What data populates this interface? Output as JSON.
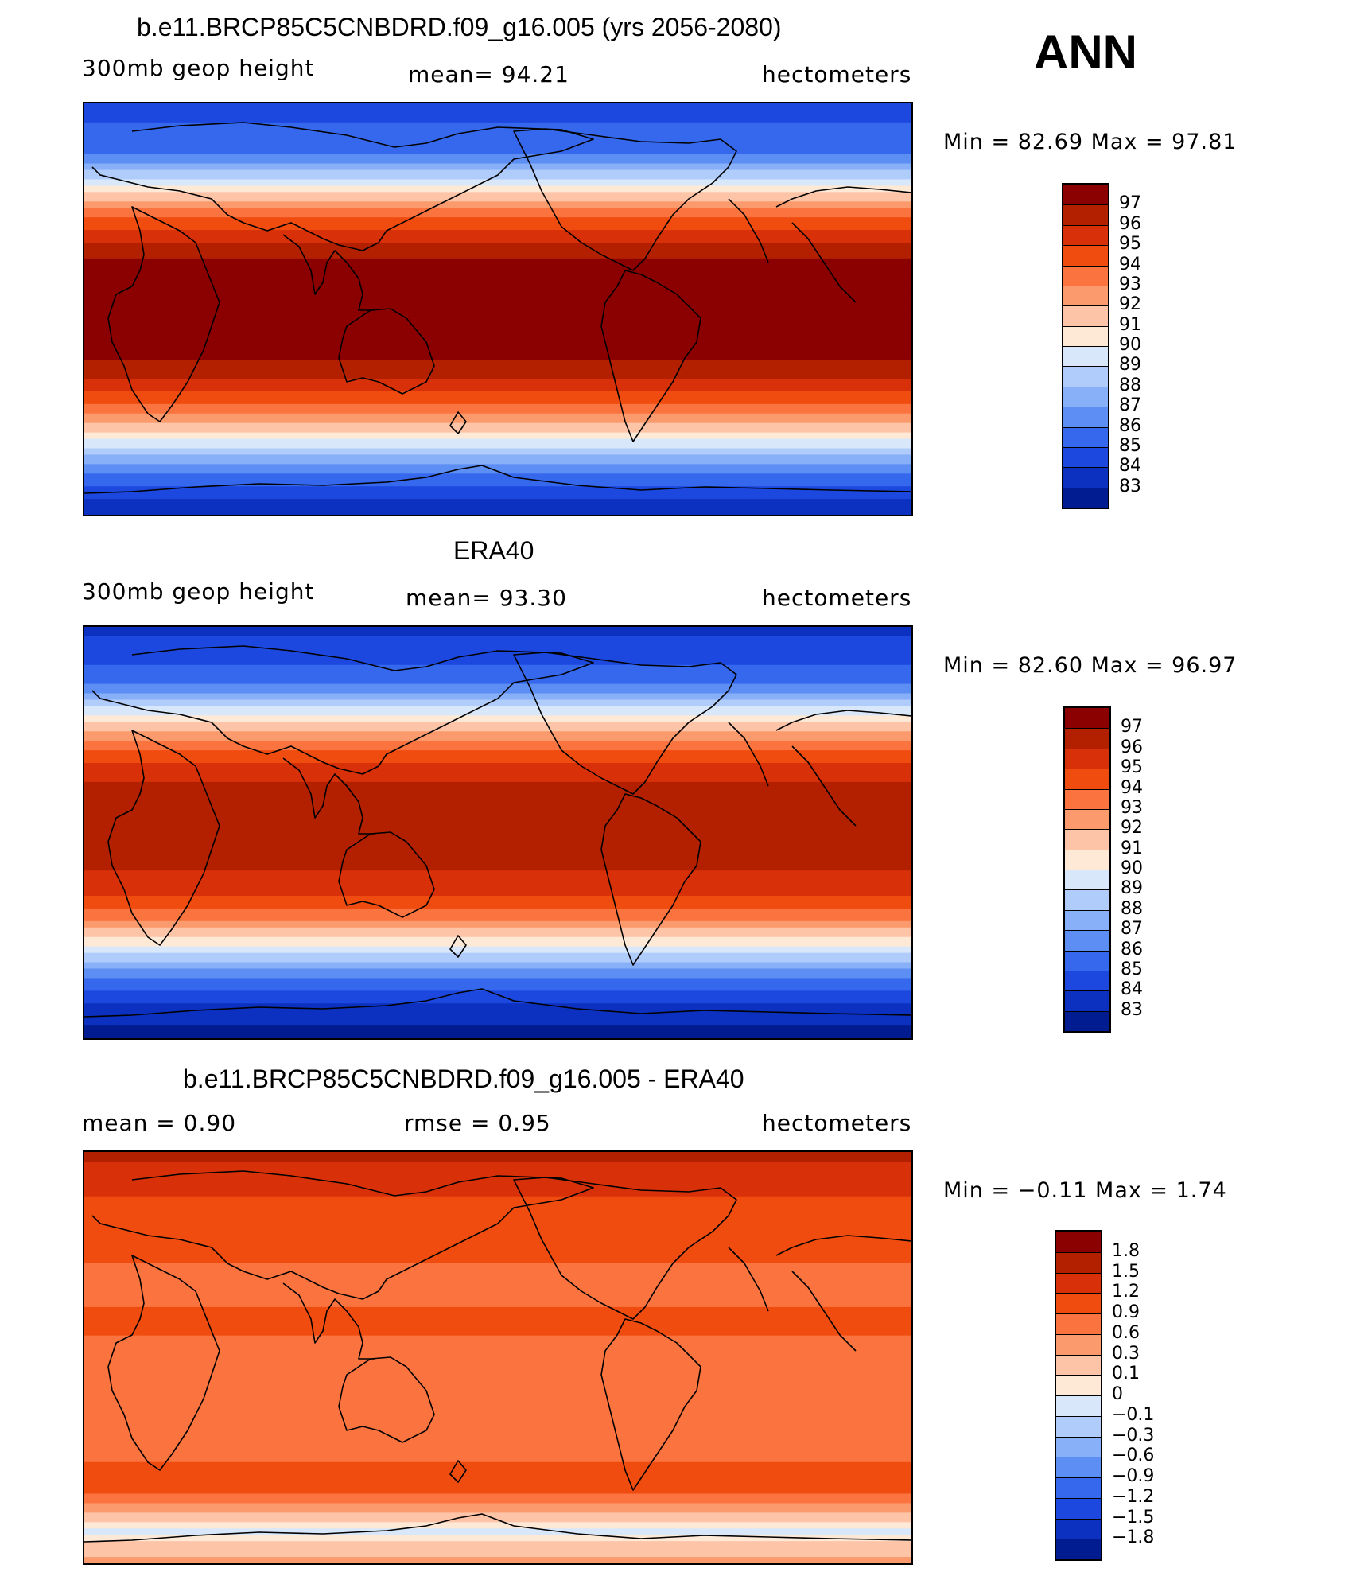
{
  "panels": [
    {
      "title": "b.e11.BRCP85C5CNBDRD.f09_g16.005 (yrs 2056-2080)",
      "left_label": "300mb  geop  height",
      "center_label": "mean=   94.21",
      "right_label": "hectometers",
      "minmax": "Min  =    82.69  Max  =    97.81",
      "colorbar": {
        "labels": [
          "97",
          "96",
          "95",
          "94",
          "93",
          "92",
          "91",
          "90",
          "89",
          "88",
          "87",
          "86",
          "85",
          "84",
          "83"
        ],
        "colors": [
          "#8b0000",
          "#b22000",
          "#d83008",
          "#f04c10",
          "#fb7440",
          "#fb9a6c",
          "#fdc4a8",
          "#fee8d6",
          "#d8e8fa",
          "#b0ccfa",
          "#88b0f8",
          "#5c8ef4",
          "#3668ee",
          "#1c48e0",
          "#0c30c0",
          "#001c90"
        ]
      },
      "zonal_values": [
        84.2,
        84.9,
        85.4,
        85.6,
        86.5,
        88.6,
        90.7,
        92.4,
        93.9,
        95.3,
        96.3,
        97.0,
        97.2,
        97.2,
        97.2,
        97.2,
        97.2,
        97.2,
        97.0,
        96.4,
        95.5,
        94.4,
        93.0,
        91.3,
        89.6,
        87.8,
        86.3,
        85.0,
        83.9,
        83.2
      ]
    },
    {
      "title": "ERA40",
      "left_label": "300mb  geop  height",
      "center_label": "mean=   93.30",
      "right_label": "hectometers",
      "minmax": "Min  =    82.60  Max  =    96.97",
      "colorbar": {
        "labels": [
          "97",
          "96",
          "95",
          "94",
          "93",
          "92",
          "91",
          "90",
          "89",
          "88",
          "87",
          "86",
          "85",
          "84",
          "83"
        ],
        "colors": [
          "#8b0000",
          "#b22000",
          "#d83008",
          "#f04c10",
          "#fb7440",
          "#fb9a6c",
          "#fdc4a8",
          "#fee8d6",
          "#d8e8fa",
          "#b0ccfa",
          "#88b0f8",
          "#5c8ef4",
          "#3668ee",
          "#1c48e0",
          "#0c30c0",
          "#001c90"
        ]
      },
      "zonal_values": [
        83.6,
        84.3,
        84.8,
        85.2,
        86.0,
        87.8,
        89.8,
        91.6,
        93.1,
        94.4,
        95.4,
        96.0,
        96.3,
        96.4,
        96.4,
        96.4,
        96.3,
        96.1,
        95.7,
        95.0,
        94.0,
        92.6,
        90.9,
        89.1,
        87.3,
        85.7,
        84.6,
        83.8,
        83.1,
        82.7
      ]
    },
    {
      "title": "b.e11.BRCP85C5CNBDRD.f09_g16.005 - ERA40",
      "left_label": "mean  =      0.90",
      "center_label": "rmse  =      0.95",
      "right_label": "hectometers",
      "minmax": "Min  =   −0.11  Max  =     1.74",
      "colorbar": {
        "labels": [
          "1.8",
          "1.5",
          "1.2",
          "0.9",
          "0.6",
          "0.3",
          "0.1",
          "0",
          "−0.1",
          "−0.3",
          "−0.6",
          "−0.9",
          "−1.2",
          "−1.5",
          "−1.8"
        ],
        "colors": [
          "#8b0000",
          "#b22000",
          "#d83008",
          "#f04c10",
          "#fb7440",
          "#fb9a6c",
          "#fdc4a8",
          "#fee8d6",
          "#d8e8fa",
          "#b0ccfa",
          "#88b0f8",
          "#5c8ef4",
          "#3668ee",
          "#1c48e0",
          "#0c30c0",
          "#001c90"
        ]
      },
      "zonal_values": [
        1.6,
        1.45,
        1.3,
        1.2,
        1.05,
        0.95,
        0.9,
        1.0,
        0.85,
        0.8,
        0.85,
        0.9,
        0.9,
        0.9,
        0.8,
        0.75,
        0.85,
        0.9,
        0.85,
        0.8,
        0.7,
        0.75,
        0.9,
        1.1,
        0.95,
        0.5,
        0.15,
        -0.05,
        0.2,
        0.35
      ]
    }
  ],
  "season": "ANN",
  "accent": "#8b0000"
}
